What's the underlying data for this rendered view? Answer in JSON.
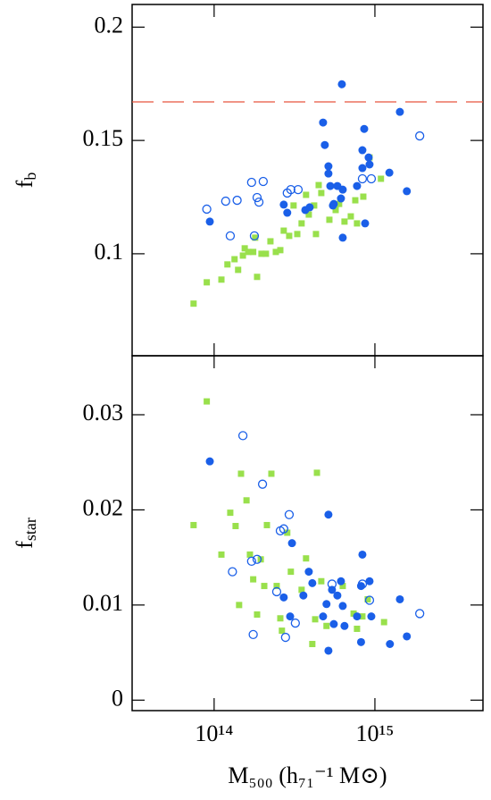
{
  "chart_data": [
    {
      "type": "scatter",
      "log_x": true,
      "ylabel": "f",
      "ylabel_sub": "b",
      "xlim": [
        30900000000000.0,
        4700000000000000.0
      ],
      "xticks": [
        100000000000000.0,
        1000000000000000.0
      ],
      "ylim": [
        0.055,
        0.21
      ],
      "yticks": [
        0.1,
        0.15,
        0.2
      ],
      "hline": {
        "value": 0.167,
        "color": "#e8553f"
      },
      "series": [
        {
          "marker": "square",
          "color": "#99e04c",
          "x": [
            74500000000000.0,
            90000000000000.0,
            111000000000000.0,
            121000000000000.0,
            134000000000000.0,
            141000000000000.0,
            151000000000000.0,
            155000000000000.0,
            163000000000000.0,
            175000000000000.0,
            180000000000000.0,
            185000000000000.0,
            197000000000000.0,
            210000000000000.0,
            224000000000000.0,
            242000000000000.0,
            258000000000000.0,
            271000000000000.0,
            293000000000000.0,
            312000000000000.0,
            329000000000000.0,
            350000000000000.0,
            373000000000000.0,
            388000000000000.0,
            419000000000000.0,
            430000000000000.0,
            447000000000000.0,
            464000000000000.0,
            521000000000000.0,
            570000000000000.0,
            599000000000000.0,
            647000000000000.0,
            708000000000000.0,
            755000000000000.0,
            774000000000000.0,
            847000000000000.0,
            926000000000000.0,
            1090000000000000.0
          ],
          "values": [
            0.078,
            0.0874,
            0.0886,
            0.0953,
            0.0976,
            0.0929,
            0.0992,
            0.1024,
            0.1008,
            0.1008,
            0.1071,
            0.0898,
            0.1,
            0.1,
            0.1055,
            0.1008,
            0.1016,
            0.1102,
            0.1079,
            0.1213,
            0.1087,
            0.1134,
            0.126,
            0.1173,
            0.1213,
            0.1087,
            0.1303,
            0.1268,
            0.115,
            0.1193,
            0.122,
            0.1142,
            0.1165,
            0.1236,
            0.1134,
            0.1252,
            0.1425,
            0.1331
          ]
        },
        {
          "marker": "circle",
          "color": "#1a5fe8",
          "x": [
            94000000000000.0,
            271000000000000.0,
            285000000000000.0,
            369000000000000.0,
            393000000000000.0,
            476000000000000.0,
            488000000000000.0,
            514000000000000.0,
            514000000000000.0,
            528000000000000.0,
            555000000000000.0,
            584000000000000.0,
            548000000000000.0,
            615000000000000.0,
            631000000000000.0,
            631000000000000.0,
            623000000000000.0,
            774000000000000.0,
            836000000000000.0,
            836000000000000.0,
            858000000000000.0,
            869000000000000.0,
            914000000000000.0,
            926000000000000.0,
            1230000000000000.0,
            1430000000000000.0,
            1580000000000000.0
          ],
          "values": [
            0.1142,
            0.1217,
            0.1181,
            0.1193,
            0.1205,
            0.1579,
            0.148,
            0.1386,
            0.1354,
            0.1299,
            0.122,
            0.1299,
            0.1213,
            0.1244,
            0.1283,
            0.1071,
            0.1748,
            0.1299,
            0.1457,
            0.1378,
            0.1551,
            0.1134,
            0.1425,
            0.1394,
            0.1358,
            0.1626,
            0.1276
          ]
        },
        {
          "marker": "open-circle",
          "color": "#1a5fe8",
          "x": [
            90000000000000.0,
            118000000000000.0,
            126000000000000.0,
            139000000000000.0,
            171000000000000.0,
            185000000000000.0,
            190000000000000.0,
            202000000000000.0,
            178000000000000.0,
            285000000000000.0,
            300000000000000.0,
            333000000000000.0,
            836000000000000.0,
            950000000000000.0,
            1900000000000000.0
          ],
          "values": [
            0.1197,
            0.1232,
            0.1079,
            0.1236,
            0.1315,
            0.1248,
            0.1228,
            0.1319,
            0.1079,
            0.1268,
            0.1283,
            0.1283,
            0.1331,
            0.1331,
            0.152
          ]
        }
      ]
    },
    {
      "type": "scatter",
      "log_x": true,
      "ylabel": "f",
      "ylabel_sub": "star",
      "xlabel": "M₅₀₀  (h₇₁⁻¹  M⊙)",
      "xlim": [
        30900000000000.0,
        4700000000000000.0
      ],
      "xticks": [
        {
          "value": 100000000000000.0,
          "label": "10¹⁴"
        },
        {
          "value": 1000000000000000.0,
          "label": "10¹⁵"
        }
      ],
      "ylim": [
        -0.0011,
        0.0362
      ],
      "yticks": [
        0,
        0.01,
        0.02,
        0.03
      ],
      "series": [
        {
          "marker": "square",
          "color": "#99e04c",
          "x": [
            74500000000000.0,
            90000000000000.0,
            111000000000000.0,
            126000000000000.0,
            136000000000000.0,
            143000000000000.0,
            147000000000000.0,
            159000000000000.0,
            167000000000000.0,
            175000000000000.0,
            185000000000000.0,
            195000000000000.0,
            205000000000000.0,
            213000000000000.0,
            227000000000000.0,
            245000000000000.0,
            258000000000000.0,
            264000000000000.0,
            285000000000000.0,
            300000000000000.0,
            350000000000000.0,
            373000000000000.0,
            408000000000000.0,
            425000000000000.0,
            436000000000000.0,
            464000000000000.0,
            500000000000000.0,
            631000000000000.0,
            737000000000000.0,
            774000000000000.0,
            836000000000000.0,
            902000000000000.0,
            1140000000000000.0
          ],
          "values": [
            0.0184,
            0.0314,
            0.0153,
            0.0197,
            0.0183,
            0.01,
            0.0238,
            0.021,
            0.0153,
            0.0127,
            0.009,
            0.0148,
            0.012,
            0.0184,
            0.0238,
            0.012,
            0.0086,
            0.0073,
            0.0176,
            0.0135,
            0.0116,
            0.0149,
            0.0059,
            0.0085,
            0.0239,
            0.0125,
            0.0078,
            0.012,
            0.0091,
            0.0075,
            0.0088,
            0.0106,
            0.0082
          ]
        },
        {
          "marker": "circle",
          "color": "#1a5fe8",
          "x": [
            94000000000000.0,
            271000000000000.0,
            297000000000000.0,
            305000000000000.0,
            359000000000000.0,
            388000000000000.0,
            408000000000000.0,
            476000000000000.0,
            500000000000000.0,
            514000000000000.0,
            514000000000000.0,
            541000000000000.0,
            555000000000000.0,
            584000000000000.0,
            615000000000000.0,
            631000000000000.0,
            647000000000000.0,
            774000000000000.0,
            820000000000000.0,
            820000000000000.0,
            836000000000000.0,
            926000000000000.0,
            950000000000000.0,
            1240000000000000.0,
            1430000000000000.0,
            1580000000000000.0
          ],
          "values": [
            0.0251,
            0.0108,
            0.0088,
            0.0165,
            0.011,
            0.0135,
            0.0123,
            0.0088,
            0.0101,
            0.0195,
            0.0052,
            0.0116,
            0.008,
            0.011,
            0.0125,
            0.0099,
            0.0078,
            0.0088,
            0.012,
            0.0061,
            0.0153,
            0.0125,
            0.0088,
            0.0059,
            0.0106,
            0.0067
          ]
        },
        {
          "marker": "open-circle",
          "color": "#1a5fe8",
          "x": [
            130000000000000.0,
            151000000000000.0,
            171000000000000.0,
            175000000000000.0,
            185000000000000.0,
            200000000000000.0,
            245000000000000.0,
            258000000000000.0,
            271000000000000.0,
            278000000000000.0,
            293000000000000.0,
            320000000000000.0,
            541000000000000.0,
            836000000000000.0,
            926000000000000.0,
            1900000000000000.0
          ],
          "values": [
            0.0135,
            0.0278,
            0.0146,
            0.0069,
            0.0148,
            0.0227,
            0.0114,
            0.0178,
            0.018,
            0.0066,
            0.0195,
            0.0081,
            0.0122,
            0.0122,
            0.0105,
            0.0091
          ]
        }
      ]
    }
  ]
}
